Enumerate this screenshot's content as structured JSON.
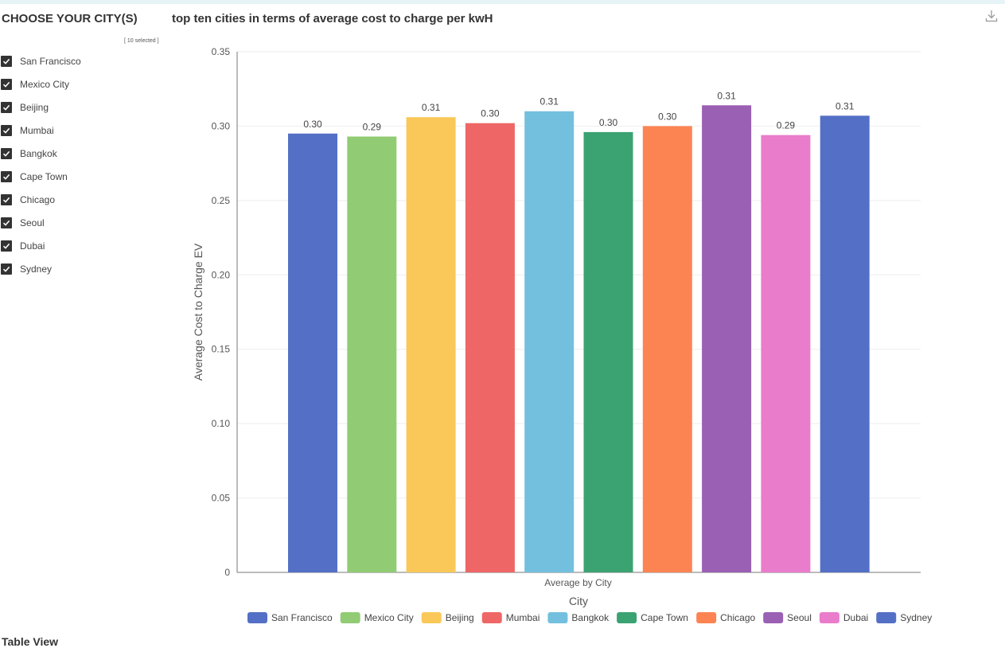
{
  "filter": {
    "title": "CHOOSE YOUR CITY(S)",
    "selected_count": "[ 10 selected ]",
    "cities": [
      {
        "label": "San Francisco",
        "checked": true
      },
      {
        "label": "Mexico City",
        "checked": true
      },
      {
        "label": "Beijing",
        "checked": true
      },
      {
        "label": "Mumbai",
        "checked": true
      },
      {
        "label": "Bangkok",
        "checked": true
      },
      {
        "label": "Cape Town",
        "checked": true
      },
      {
        "label": "Chicago",
        "checked": true
      },
      {
        "label": "Seoul",
        "checked": true
      },
      {
        "label": "Dubai",
        "checked": true
      },
      {
        "label": "Sydney",
        "checked": true
      }
    ]
  },
  "header": {
    "chart_title": "top ten cities in terms of average cost to charge per kwH",
    "download_icon": "download-icon"
  },
  "table_view_label": "Table View",
  "chart_data": {
    "type": "bar",
    "title": "top ten cities in terms of average cost to charge per kwH",
    "xlabel": "City",
    "x_group_label": "Average by City",
    "ylabel": "Average Cost to Charge EV",
    "ylim": [
      0,
      0.35
    ],
    "yticks": [
      0,
      0.05,
      0.1,
      0.15,
      0.2,
      0.25,
      0.3,
      0.35
    ],
    "ytick_labels": [
      "0",
      "0.05",
      "0.10",
      "0.15",
      "0.20",
      "0.25",
      "0.30",
      "0.35"
    ],
    "grid": true,
    "legend_position": "bottom",
    "series": [
      {
        "name": "San Francisco",
        "value": 0.295,
        "label": "0.30",
        "color": "#5470c6"
      },
      {
        "name": "Mexico City",
        "value": 0.293,
        "label": "0.29",
        "color": "#91cc75"
      },
      {
        "name": "Beijing",
        "value": 0.306,
        "label": "0.31",
        "color": "#fac858"
      },
      {
        "name": "Mumbai",
        "value": 0.302,
        "label": "0.30",
        "color": "#ee6666"
      },
      {
        "name": "Bangkok",
        "value": 0.31,
        "label": "0.31",
        "color": "#73c0de"
      },
      {
        "name": "Cape Town",
        "value": 0.296,
        "label": "0.30",
        "color": "#3ba272"
      },
      {
        "name": "Chicago",
        "value": 0.3,
        "label": "0.30",
        "color": "#fc8452"
      },
      {
        "name": "Seoul",
        "value": 0.314,
        "label": "0.31",
        "color": "#9a60b4"
      },
      {
        "name": "Dubai",
        "value": 0.294,
        "label": "0.29",
        "color": "#ea7ccc"
      },
      {
        "name": "Sydney",
        "value": 0.307,
        "label": "0.31",
        "color": "#5470c6"
      }
    ]
  }
}
